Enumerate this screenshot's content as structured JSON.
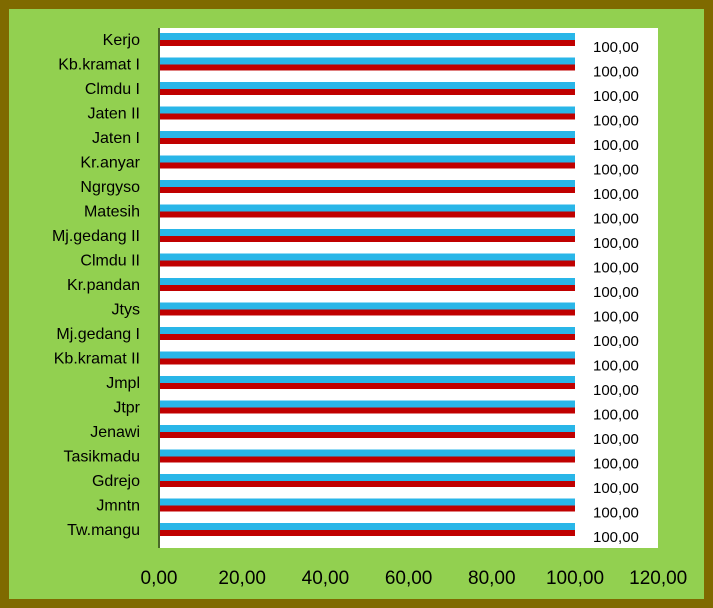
{
  "chart_data": {
    "type": "bar",
    "orientation": "horizontal",
    "categories": [
      "Kerjo",
      "Kb.kramat I",
      "Clmdu I",
      "Jaten II",
      "Jaten I",
      "Kr.anyar",
      "Ngrgyso",
      "Matesih",
      "Mj.gedang II",
      "Clmdu II",
      "Kr.pandan",
      "Jtys",
      "Mj.gedang I",
      "Kb.kramat II",
      "Jmpl",
      "Jtpr",
      "Jenawi",
      "Tasikmadu",
      "Gdrejo",
      "Jmntn",
      "Tw.mangu"
    ],
    "series": [
      {
        "color": "#29b6e8",
        "values": [
          100,
          100,
          100,
          100,
          100,
          100,
          100,
          100,
          100,
          100,
          100,
          100,
          100,
          100,
          100,
          100,
          100,
          100,
          100,
          100,
          100
        ]
      },
      {
        "color": "#c00000",
        "values": [
          100,
          100,
          100,
          100,
          100,
          100,
          100,
          100,
          100,
          100,
          100,
          100,
          100,
          100,
          100,
          100,
          100,
          100,
          100,
          100,
          100
        ]
      }
    ],
    "data_labels": [
      "100,00",
      "100,00",
      "100,00",
      "100,00",
      "100,00",
      "100,00",
      "100,00",
      "100,00",
      "100,00",
      "100,00",
      "100,00",
      "100,00",
      "100,00",
      "100,00",
      "100,00",
      "100,00",
      "100,00",
      "100,00",
      "100,00",
      "100,00",
      "100,00"
    ],
    "x_ticks": [
      "0,00",
      "20,00",
      "40,00",
      "60,00",
      "80,00",
      "100,00",
      "120,00"
    ],
    "xlim": [
      0,
      120
    ],
    "grid": false,
    "legend": "none"
  }
}
